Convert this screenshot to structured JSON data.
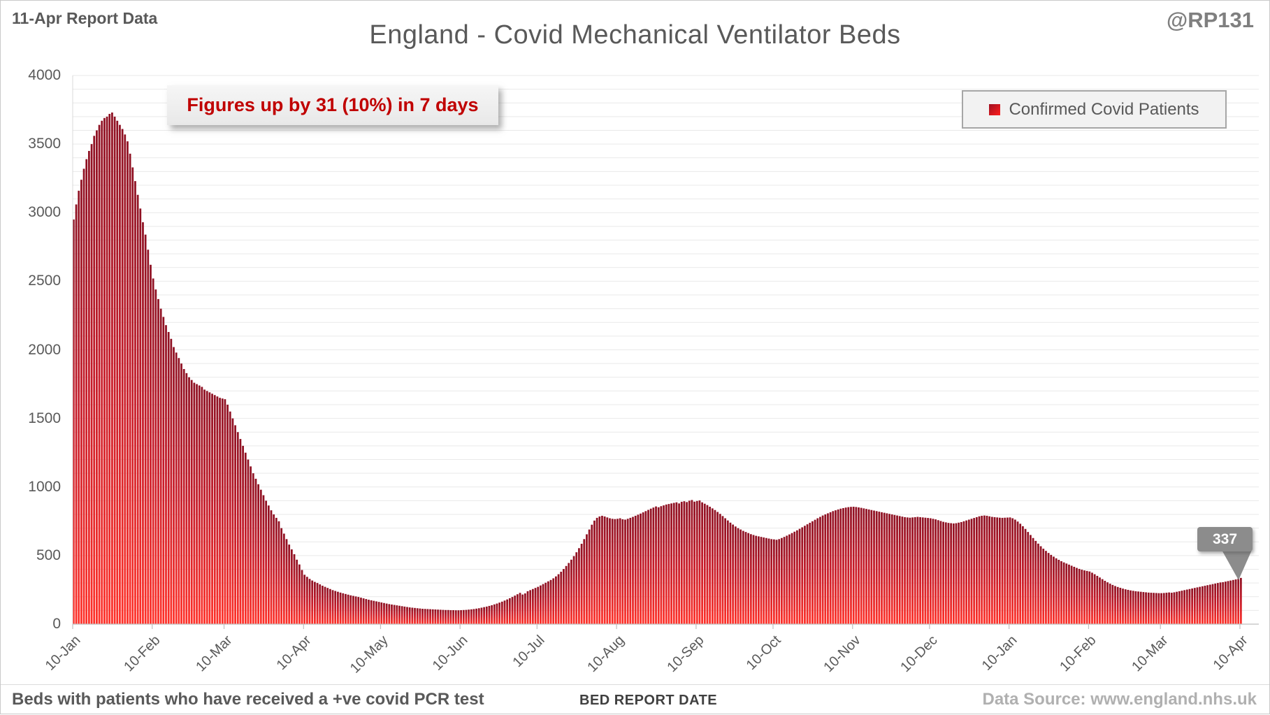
{
  "page": {
    "report_label": "11-Apr Report Data",
    "title": "England - Covid Mechanical Ventilator Beds",
    "watermark": "@RP131"
  },
  "annotation": {
    "text": "Figures up by 31 (10%) in 7 days"
  },
  "legend": {
    "label": "Confirmed Covid Patients"
  },
  "callout": {
    "value": "337"
  },
  "footer": {
    "note": "Beds with patients who have received a +ve covid PCR test",
    "axis_title": "BED REPORT DATE",
    "source": "Data Source: www.england.nhs.uk"
  },
  "colors": {
    "bar_top": "#8E1022",
    "bar_mid": "#C61A28",
    "bar_bottom": "#FF3028",
    "annotation_text": "#C00000",
    "callout_bg": "#8C8C8C",
    "gridline": "#E9E9E9",
    "axis_line": "#BFBFBF",
    "text_gray": "#595959"
  },
  "chart_data": {
    "type": "bar",
    "title": "England - Covid Mechanical Ventilator Beds",
    "xlabel": "BED REPORT DATE",
    "ylabel": "",
    "legend_position": "top-right",
    "grid": true,
    "ylim": [
      0,
      4000
    ],
    "ytick_step": 500,
    "minor_grid_step": 100,
    "series_name": "Confirmed Covid Patients",
    "x_tick_labels": [
      "10-Jan",
      "10-Feb",
      "10-Mar",
      "10-Apr",
      "10-May",
      "10-Jun",
      "10-Jul",
      "10-Aug",
      "10-Sep",
      "10-Oct",
      "10-Nov",
      "10-Dec",
      "10-Jan",
      "10-Feb",
      "10-Mar",
      "10-Apr"
    ],
    "x_tick_day_index": [
      0,
      31,
      59,
      90,
      120,
      151,
      181,
      212,
      243,
      273,
      304,
      334,
      365,
      396,
      424,
      455
    ],
    "peak_value": 3730,
    "last_value": 337,
    "values": [
      2950,
      3060,
      3160,
      3240,
      3320,
      3390,
      3450,
      3500,
      3560,
      3600,
      3640,
      3670,
      3690,
      3700,
      3720,
      3730,
      3700,
      3670,
      3640,
      3610,
      3570,
      3520,
      3430,
      3330,
      3230,
      3130,
      3030,
      2930,
      2840,
      2730,
      2620,
      2520,
      2440,
      2370,
      2300,
      2240,
      2180,
      2130,
      2080,
      2020,
      1980,
      1940,
      1900,
      1860,
      1830,
      1800,
      1780,
      1760,
      1750,
      1740,
      1730,
      1710,
      1700,
      1690,
      1680,
      1670,
      1660,
      1650,
      1645,
      1640,
      1600,
      1550,
      1500,
      1450,
      1400,
      1350,
      1300,
      1250,
      1200,
      1150,
      1100,
      1060,
      1020,
      980,
      940,
      900,
      865,
      830,
      800,
      775,
      750,
      700,
      660,
      620,
      580,
      545,
      510,
      470,
      435,
      395,
      360,
      345,
      330,
      318,
      308,
      300,
      290,
      280,
      272,
      264,
      256,
      248,
      242,
      236,
      230,
      225,
      220,
      215,
      210,
      206,
      202,
      198,
      193,
      188,
      183,
      178,
      174,
      170,
      166,
      162,
      158,
      154,
      150,
      146,
      143,
      140,
      137,
      134,
      131,
      128,
      125,
      122,
      120,
      118,
      116,
      114,
      112,
      111,
      110,
      109,
      108,
      107,
      106,
      105,
      104,
      103,
      103,
      102,
      102,
      101,
      101,
      102,
      103,
      104,
      106,
      108,
      110,
      113,
      116,
      120,
      124,
      128,
      133,
      138,
      144,
      150,
      157,
      164,
      172,
      180,
      189,
      198,
      208,
      218,
      228,
      216,
      224,
      240,
      248,
      256,
      264,
      272,
      282,
      292,
      302,
      312,
      322,
      334,
      348,
      364,
      382,
      402,
      424,
      446,
      470,
      496,
      524,
      554,
      586,
      620,
      655,
      690,
      725,
      755,
      775,
      785,
      790,
      785,
      778,
      772,
      768,
      766,
      768,
      772,
      765,
      762,
      768,
      775,
      782,
      790,
      798,
      806,
      815,
      824,
      833,
      842,
      850,
      858,
      852,
      860,
      866,
      872,
      876,
      880,
      884,
      888,
      880,
      892,
      896,
      890,
      900,
      905,
      893,
      898,
      902,
      888,
      878,
      868,
      856,
      844,
      832,
      818,
      804,
      788,
      772,
      756,
      740,
      726,
      712,
      700,
      690,
      680,
      672,
      664,
      656,
      650,
      644,
      640,
      636,
      632,
      628,
      624,
      620,
      618,
      615,
      620,
      628,
      636,
      645,
      654,
      664,
      674,
      684,
      695,
      706,
      717,
      728,
      739,
      750,
      761,
      772,
      782,
      792,
      800,
      808,
      816,
      824,
      830,
      836,
      842,
      846,
      850,
      853,
      855,
      856,
      854,
      851,
      848,
      844,
      840,
      836,
      832,
      828,
      824,
      820,
      816,
      812,
      808,
      804,
      800,
      796,
      792,
      788,
      784,
      780,
      778,
      776,
      778,
      780,
      782,
      780,
      778,
      776,
      774,
      772,
      768,
      764,
      758,
      752,
      746,
      742,
      738,
      736,
      734,
      736,
      740,
      744,
      750,
      756,
      762,
      768,
      774,
      780,
      786,
      790,
      792,
      790,
      786,
      782,
      780,
      778,
      776,
      775,
      776,
      777,
      778,
      772,
      762,
      748,
      732,
      714,
      694,
      672,
      650,
      628,
      607,
      587,
      568,
      550,
      534,
      519,
      505,
      492,
      480,
      469,
      459,
      450,
      442,
      434,
      426,
      418,
      410,
      403,
      397,
      392,
      388,
      384,
      375,
      364,
      352,
      340,
      328,
      316,
      305,
      295,
      286,
      278,
      271,
      265,
      259,
      254,
      250,
      246,
      243,
      240,
      238,
      236,
      234,
      232,
      230,
      229,
      228,
      227,
      226,
      226,
      227,
      229,
      231,
      229,
      232,
      236,
      240,
      244,
      248,
      252,
      256,
      260,
      264,
      268,
      272,
      276,
      280,
      284,
      288,
      292,
      296,
      300,
      304,
      306,
      310,
      314,
      318,
      322,
      326,
      331,
      337
    ]
  }
}
